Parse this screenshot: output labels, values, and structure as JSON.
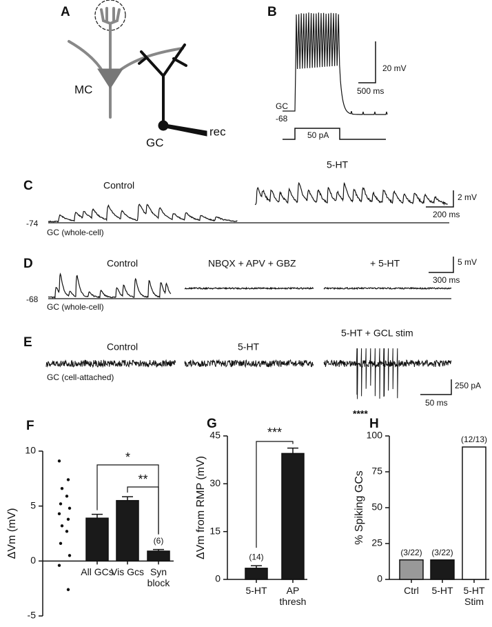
{
  "panels": {
    "A": {
      "label": "A",
      "mc": "MC",
      "gc": "GC",
      "rec": "rec"
    },
    "B": {
      "label": "B",
      "gc": "GC",
      "rmp": "-68",
      "scale_v": "20 mV",
      "scale_t": "500 ms",
      "stim": "50 pA"
    },
    "C": {
      "label": "C",
      "control": "Control",
      "drug": "5-HT",
      "rmp": "-74",
      "cell": "GC (whole-cell)",
      "scale_v": "2 mV",
      "scale_t": "200 ms"
    },
    "D": {
      "label": "D",
      "control": "Control",
      "blockers": "NBQX + APV + GBZ",
      "drug": "+ 5-HT",
      "rmp": "-68",
      "cell": "GC (whole-cell)",
      "scale_v": "5 mV",
      "scale_t": "300 ms"
    },
    "E": {
      "label": "E",
      "control": "Control",
      "drug": "5-HT",
      "stim": "5-HT + GCL stim",
      "cell": "GC (cell-attached)",
      "scale_i": "250 pA",
      "scale_t": "50 ms",
      "significance": "****"
    }
  },
  "chart_data": [
    {
      "type": "bar",
      "label": "F",
      "ylabel": "ΔVm (mV)",
      "categories": [
        "All GCs",
        "Vis Gcs",
        "Syn block"
      ],
      "values": [
        3.9,
        5.5,
        0.9
      ],
      "errors": [
        0.35,
        0.35,
        0.15
      ],
      "color": "#1a1a1a",
      "points": [
        9.1,
        7.4,
        6.6,
        5.9,
        5.2,
        4.8,
        4.3,
        3.8,
        3.2,
        2.7,
        1.6,
        0.5,
        -0.4,
        -2.6
      ],
      "n_label": "(6)",
      "annotations": [
        "*",
        "**"
      ],
      "ylim": [
        -5,
        10
      ],
      "yticks": [
        -5,
        0,
        5,
        10
      ]
    },
    {
      "type": "bar",
      "label": "G",
      "ylabel": "ΔVm from RMP (mV)",
      "categories": [
        "5-HT",
        "AP thresh"
      ],
      "values": [
        3.5,
        39.5
      ],
      "errors": [
        0.8,
        1.7
      ],
      "color": "#1a1a1a",
      "n_label": "(14)",
      "annotations": [
        "***"
      ],
      "ylim": [
        0,
        45
      ],
      "yticks": [
        0,
        15,
        30,
        45
      ]
    },
    {
      "type": "bar",
      "label": "H",
      "ylabel": "% Spiking GCs",
      "categories": [
        "Ctrl",
        "5-HT",
        "5-HT Stim"
      ],
      "values": [
        13.6,
        13.6,
        92.3
      ],
      "value_labels": [
        "(3/22)",
        "(3/22)",
        "(12/13)"
      ],
      "colors": [
        "#999999",
        "#1a1a1a",
        "#ffffff"
      ],
      "ylim": [
        0,
        100
      ],
      "yticks": [
        0,
        25,
        50,
        75,
        100
      ]
    }
  ]
}
